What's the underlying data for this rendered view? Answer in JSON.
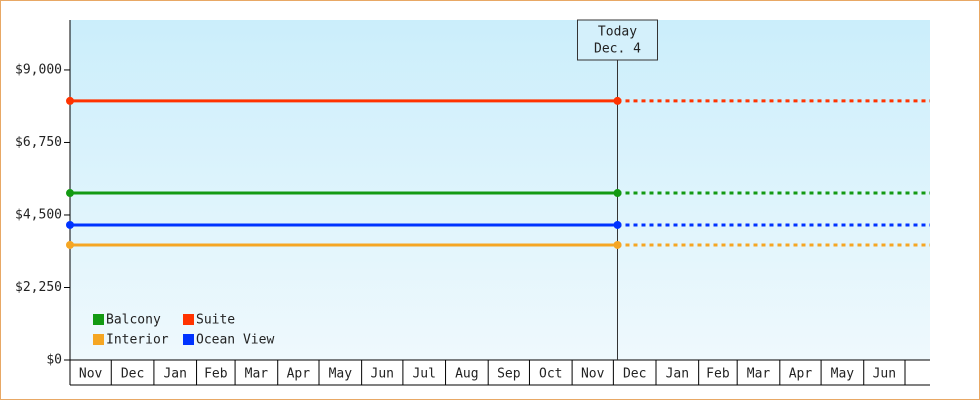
{
  "chart_data": {
    "type": "line",
    "months": [
      "Nov",
      "Dec",
      "Jan",
      "Feb",
      "Mar",
      "Apr",
      "May",
      "Jun",
      "Jul",
      "Aug",
      "Sep",
      "Oct",
      "Nov",
      "Dec",
      "Jan",
      "Feb",
      "Mar",
      "Apr",
      "May",
      "Jun"
    ],
    "series": [
      {
        "name": "Balcony",
        "color": "#139a13",
        "values": [
          5180,
          5180
        ]
      },
      {
        "name": "Suite",
        "color": "#ff3300",
        "values": [
          8040,
          8040
        ]
      },
      {
        "name": "Interior",
        "color": "#f5a623",
        "values": [
          3570,
          3570
        ]
      },
      {
        "name": "Ocean View",
        "color": "#0033ff",
        "values": [
          4190,
          4190
        ]
      }
    ],
    "ylim": [
      0,
      10550
    ],
    "yticks": [
      {
        "value": 0,
        "label": "$0"
      },
      {
        "value": 2250,
        "label": "$2,250"
      },
      {
        "value": 4500,
        "label": "$4,500"
      },
      {
        "value": 6750,
        "label": "$6,750"
      },
      {
        "value": 9000,
        "label": "$9,000"
      }
    ],
    "annotation": [
      "Today",
      "Dec. 4"
    ],
    "legend": "bottom-left"
  }
}
